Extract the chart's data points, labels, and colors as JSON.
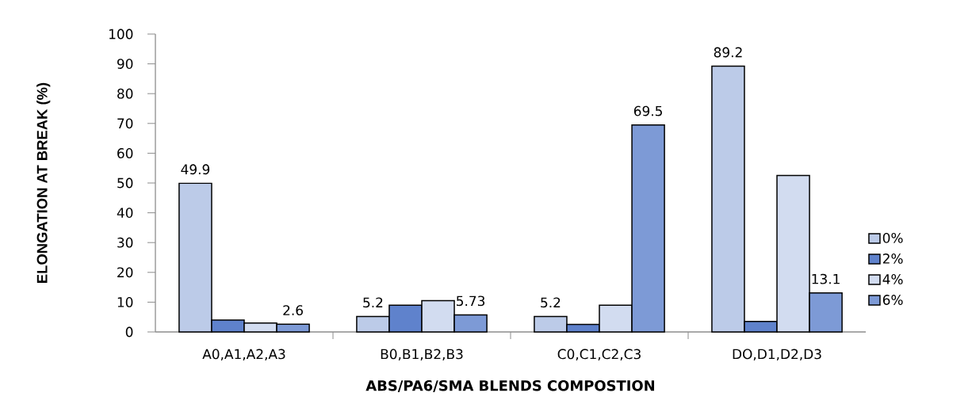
{
  "chart_data": {
    "type": "bar",
    "xlabel": "ABS/PA6/SMA BLENDS COMPOSTION",
    "ylabel": "ELONGATION AT BREAK (%)",
    "categories": [
      "A0,A1,A2,A3",
      "B0,B1,B2,B3",
      "C0,C1,C2,C3",
      "DO,D1,D2,D3"
    ],
    "series": [
      {
        "name": "0%",
        "color": "#bccbe8",
        "values": [
          49.9,
          5.2,
          5.2,
          89.2
        ],
        "value_labels": [
          "49.9",
          "5.2",
          "5.2",
          "89.2"
        ]
      },
      {
        "name": "2%",
        "color": "#5f82cc",
        "values": [
          4,
          9,
          2.5,
          3.5
        ]
      },
      {
        "name": "4%",
        "color": "#d2dcf0",
        "values": [
          3,
          10.5,
          9,
          52.5
        ]
      },
      {
        "name": "6%",
        "color": "#7d9ad6",
        "values": [
          2.6,
          5.73,
          69.5,
          13.1
        ],
        "value_labels": [
          "2.6",
          "5.73",
          "69.5",
          "13.1"
        ]
      }
    ],
    "ylim": [
      0,
      100
    ],
    "yticks": [
      0,
      10,
      20,
      30,
      40,
      50,
      60,
      70,
      80,
      90,
      100
    ],
    "legend": "right"
  }
}
